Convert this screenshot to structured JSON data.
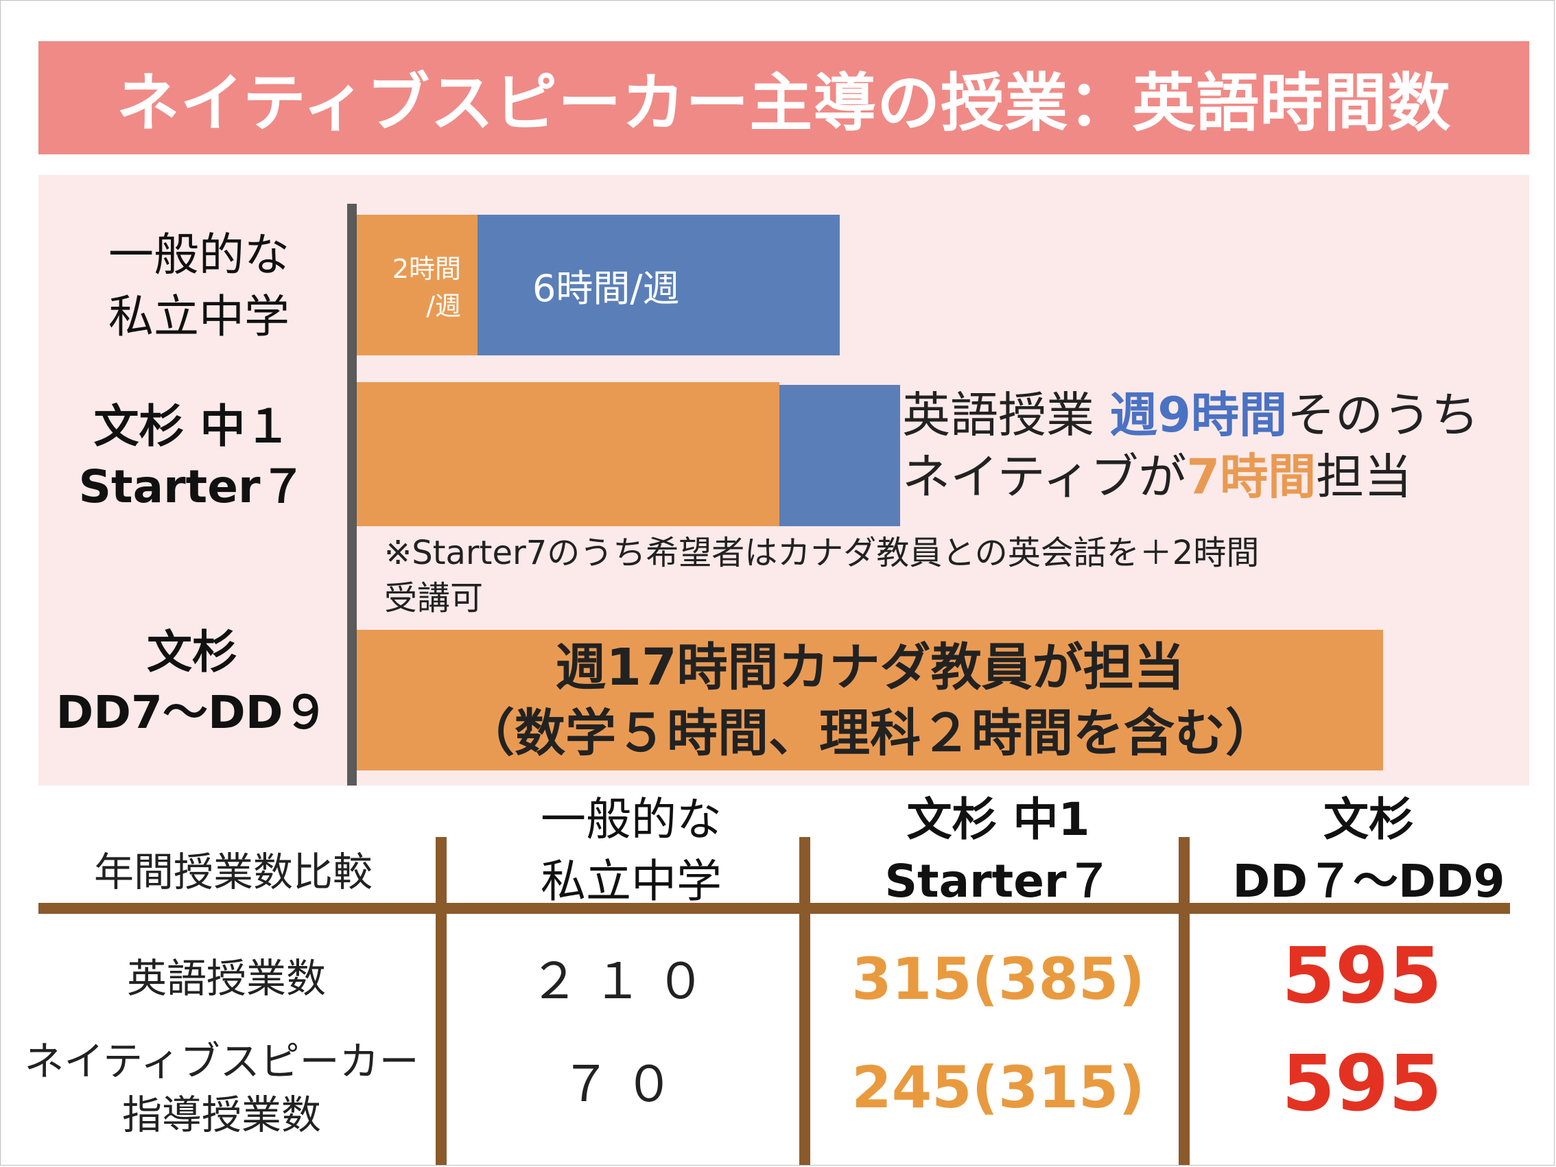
{
  "title": "ネイティブスピーカー主導の授業：英語時間数",
  "chart_data": {
    "type": "bar",
    "orientation": "horizontal",
    "stacked": true,
    "categories": [
      [
        "一般的な",
        "私立中学"
      ],
      [
        "文杉 中１",
        "Starter７"
      ],
      [
        "文杉",
        "DD7～DD９"
      ]
    ],
    "series": [
      {
        "name": "ネイティブ",
        "color": "#e99a52",
        "values": [
          2,
          7,
          17
        ]
      },
      {
        "name": "",
        "color": "#5a7fb8",
        "values": [
          6,
          2,
          0
        ]
      }
    ],
    "bar_labels": {
      "general_native": [
        "2時間",
        "/週"
      ],
      "general_other": "6時間/週"
    },
    "annotations": {
      "starter": {
        "line1_pre": "英語授業 ",
        "line1_hl": "週9時間",
        "line1_post": "そのうち",
        "line2_pre": "ネイティブが",
        "line2_hl": "7時間",
        "line2_post": "担当"
      },
      "note": [
        "※Starter7のうち希望者はカナダ教員との英会話を＋2時間",
        "受講可"
      ],
      "dd": [
        "週17時間カナダ教員が担当",
        "（数学５時間、理科２時間を含む）"
      ]
    }
  },
  "table": {
    "corner": "年間授業数比較",
    "col1": [
      "一般的な",
      "私立中学"
    ],
    "col2": [
      "文杉 中1",
      "Starter７"
    ],
    "col3": [
      "文杉",
      "DD７～DD9"
    ],
    "rows": [
      {
        "label": [
          "英語授業数"
        ],
        "v1": "２１０",
        "v2": "315(385)",
        "v3": "595"
      },
      {
        "label": [
          "ネイティブスピーカー",
          "指導授業数"
        ],
        "v1": "７０",
        "v2": "245(315)",
        "v3": "595"
      }
    ],
    "colors": {
      "orange": "#e99a3f",
      "red": "#e33222",
      "rule": "#8b5a2b"
    }
  }
}
